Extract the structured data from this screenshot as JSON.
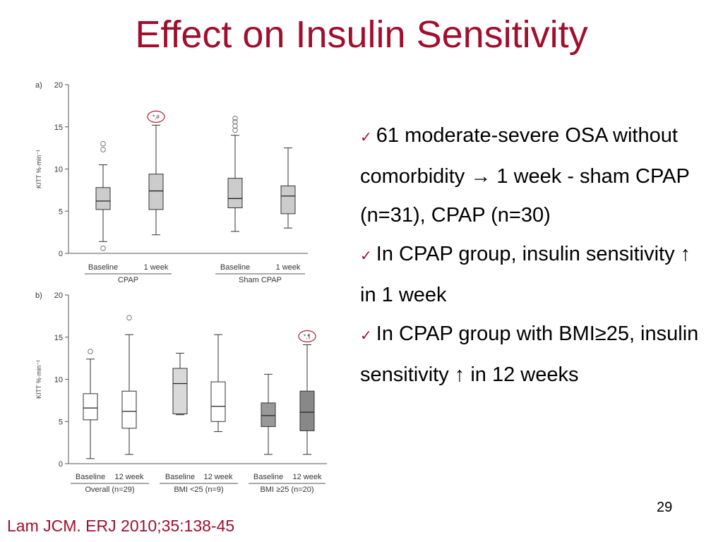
{
  "slide": {
    "title": "Effect on Insulin Sensitivity",
    "citation": "Lam JCM. ERJ 2010;35:138-45",
    "page_number": "29",
    "bullets": [
      {
        "icon": "check-icon",
        "text": "61 moderate-severe OSA without comorbidity → 1 week -  sham CPAP (n=31), CPAP (n=30)"
      },
      {
        "icon": "check-icon",
        "text": "In CPAP group, insulin sensitivity ↑ in 1 week"
      },
      {
        "icon": "check-icon",
        "text": "In CPAP group with BMI≥25,  insulin sensitivity ↑ in 12 weeks"
      }
    ]
  },
  "chart_data": [
    {
      "type": "boxplot",
      "panel_label": "a)",
      "ylabel": "KITT %·min⁻¹",
      "ylim": [
        0,
        20
      ],
      "yticks": [
        0,
        5,
        10,
        15,
        20
      ],
      "categories": [
        "Baseline",
        "1 week",
        "Baseline",
        "1 week"
      ],
      "groups": [
        {
          "label": "CPAP",
          "span": [
            0,
            1
          ]
        },
        {
          "label": "Sham CPAP",
          "span": [
            2,
            3
          ]
        }
      ],
      "boxes": [
        {
          "min": 1.4,
          "q1": 5.2,
          "median": 6.2,
          "q3": 7.8,
          "max": 10.5,
          "outliers": [
            12.3,
            13.0,
            0.6
          ],
          "fill": "#cccccc",
          "annotation": ""
        },
        {
          "min": 2.2,
          "q1": 5.2,
          "median": 7.4,
          "q3": 9.4,
          "max": 15.2,
          "outliers": [],
          "fill": "#cccccc",
          "annotation": "*,#"
        },
        {
          "min": 2.6,
          "q1": 5.4,
          "median": 6.5,
          "q3": 8.9,
          "max": 14.0,
          "outliers": [
            14.6,
            15.1,
            15.6,
            16.0
          ],
          "fill": "#cccccc",
          "annotation": ""
        },
        {
          "min": 3.0,
          "q1": 4.7,
          "median": 6.8,
          "q3": 8.0,
          "max": 12.5,
          "outliers": [],
          "fill": "#cccccc",
          "annotation": ""
        }
      ]
    },
    {
      "type": "boxplot",
      "panel_label": "b)",
      "ylabel": "KITT %·min⁻¹",
      "ylim": [
        0,
        20
      ],
      "yticks": [
        0,
        5,
        10,
        15,
        20
      ],
      "categories": [
        "Baseline",
        "12 week",
        "Baseline",
        "12 week",
        "Baseline",
        "12 week"
      ],
      "groups": [
        {
          "label": "Overall (n=29)",
          "span": [
            0,
            1
          ]
        },
        {
          "label": "BMI <25 (n=9)",
          "span": [
            2,
            3
          ]
        },
        {
          "label": "BMI ≥25 (n=20)",
          "span": [
            4,
            5
          ]
        }
      ],
      "boxes": [
        {
          "min": 0.6,
          "q1": 5.2,
          "median": 6.6,
          "q3": 8.3,
          "max": 12.4,
          "outliers": [
            13.3
          ],
          "fill": "#ffffff",
          "annotation": ""
        },
        {
          "min": 1.1,
          "q1": 4.2,
          "median": 6.2,
          "q3": 8.6,
          "max": 15.3,
          "outliers": [
            17.3
          ],
          "fill": "#ffffff",
          "annotation": ""
        },
        {
          "min": 5.8,
          "q1": 5.9,
          "median": 9.5,
          "q3": 11.3,
          "max": 13.1,
          "outliers": [],
          "fill": "#d9d9d9",
          "annotation": ""
        },
        {
          "min": 3.8,
          "q1": 5.0,
          "median": 6.8,
          "q3": 9.7,
          "max": 15.3,
          "outliers": [],
          "fill": "#ffffff",
          "annotation": ""
        },
        {
          "min": 1.1,
          "q1": 4.4,
          "median": 5.7,
          "q3": 7.2,
          "max": 10.6,
          "outliers": [],
          "fill": "#999999",
          "annotation": ""
        },
        {
          "min": 1.1,
          "q1": 3.9,
          "median": 6.1,
          "q3": 8.6,
          "max": 14.1,
          "outliers": [],
          "fill": "#888888",
          "annotation": "*,¶"
        }
      ]
    }
  ]
}
